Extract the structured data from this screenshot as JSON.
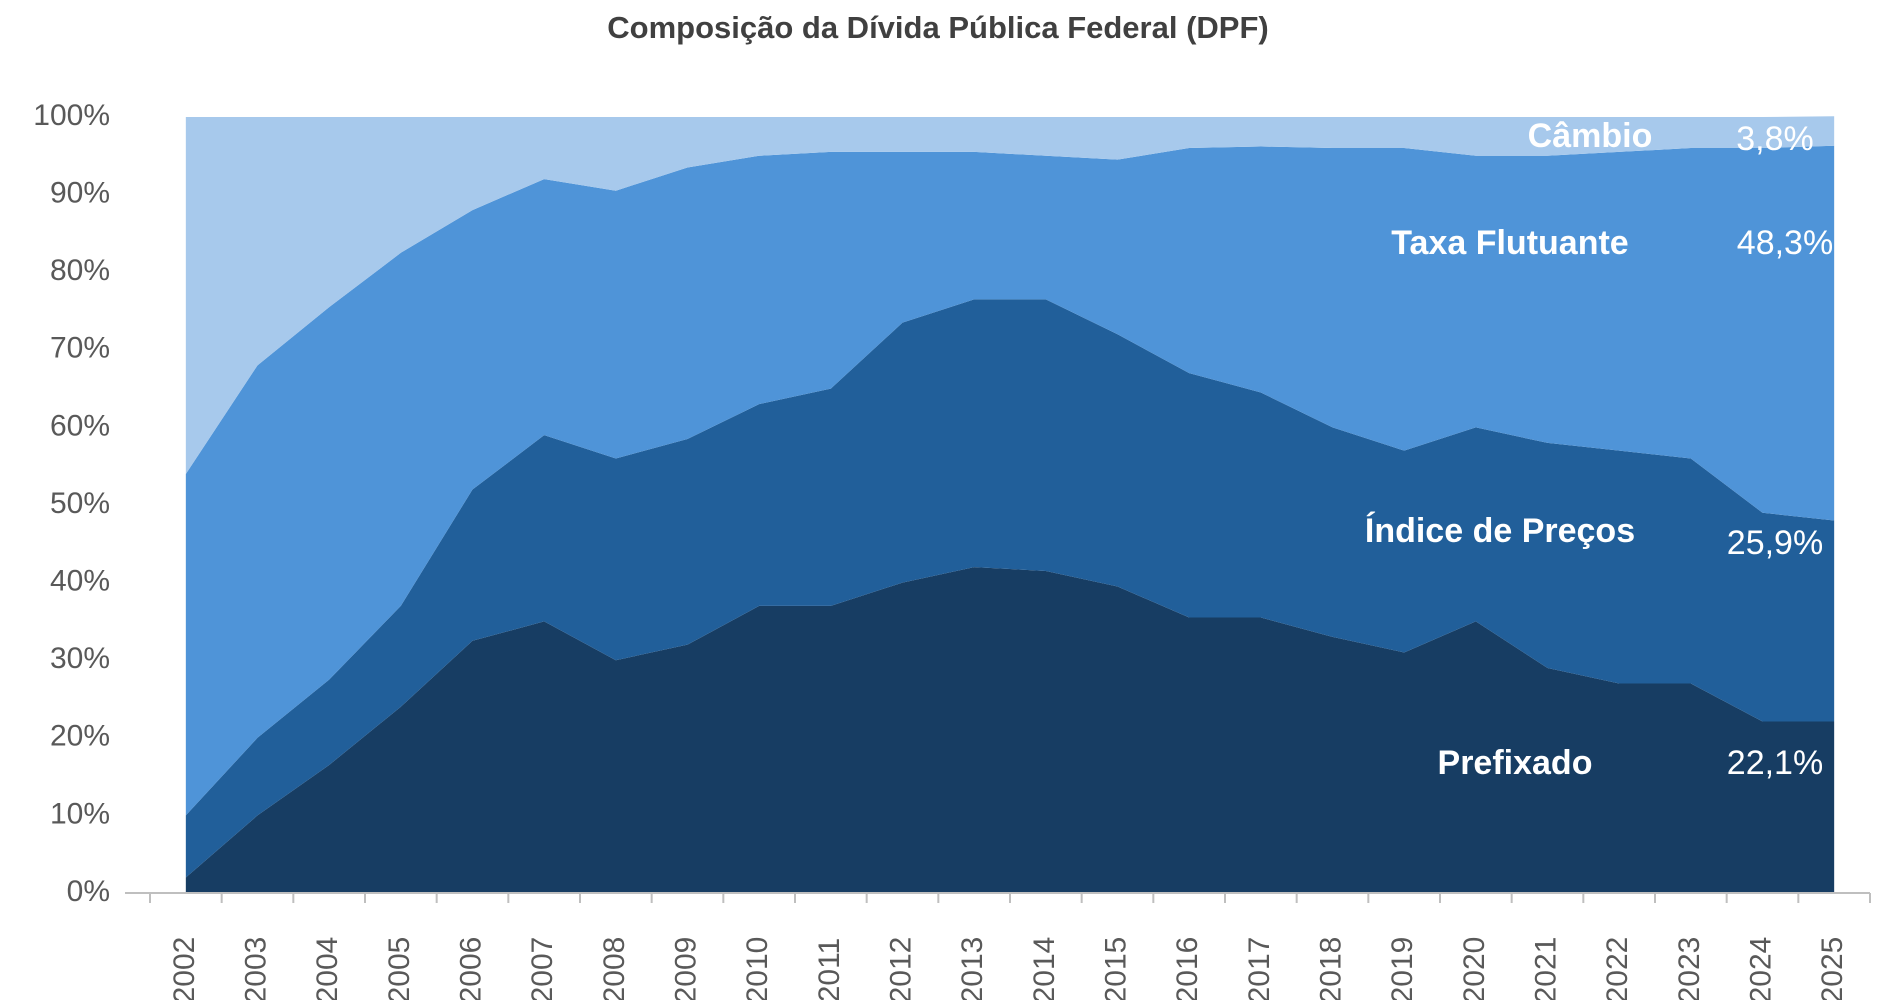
{
  "chart_data": {
    "type": "stacked_area",
    "title": "Composição da Dívida Pública Federal (DPF)",
    "categories": [
      "2002",
      "2003",
      "2004",
      "2005",
      "2006",
      "2007",
      "2008",
      "2009",
      "2010",
      "2011",
      "2012",
      "2013",
      "2014",
      "2015",
      "2016",
      "2017",
      "2018",
      "2019",
      "2020",
      "2021",
      "2022",
      "2023",
      "2024",
      "2025"
    ],
    "series": [
      {
        "name": "Prefixado",
        "color": "#173d63",
        "values": [
          2,
          10,
          16.5,
          24,
          32.5,
          35,
          30,
          32,
          37,
          37,
          40,
          42,
          41.5,
          39.5,
          35.5,
          35.5,
          33,
          31,
          35,
          29,
          27,
          27,
          22.1,
          22.1
        ],
        "value_labels": [
          null,
          null,
          null,
          null,
          null,
          null,
          null,
          null,
          null,
          null,
          null,
          null,
          null,
          null,
          null,
          null,
          null,
          null,
          null,
          null,
          null,
          null,
          null,
          "22,1%"
        ]
      },
      {
        "name": "Índice de Preços",
        "color": "#215f9a",
        "values": [
          8,
          10,
          11,
          13,
          19.5,
          24,
          26,
          26.5,
          26,
          28,
          33.5,
          34.5,
          35,
          32.5,
          31.5,
          29,
          27,
          26,
          25,
          29,
          30,
          29,
          26.9,
          25.9
        ],
        "value_labels": [
          null,
          null,
          null,
          null,
          null,
          null,
          null,
          null,
          null,
          null,
          null,
          null,
          null,
          null,
          null,
          null,
          null,
          null,
          null,
          null,
          null,
          null,
          null,
          "25,9%"
        ]
      },
      {
        "name": "Taxa Flutuante",
        "color": "#4f94d8",
        "values": [
          44,
          48,
          48,
          45.5,
          36,
          33,
          34.5,
          35,
          32,
          30.5,
          22,
          19,
          18.5,
          22.5,
          29,
          31.7,
          36,
          39,
          35,
          37,
          38.5,
          40,
          47,
          48.3
        ],
        "value_labels": [
          null,
          null,
          null,
          null,
          null,
          null,
          null,
          null,
          null,
          null,
          null,
          null,
          null,
          null,
          null,
          null,
          null,
          null,
          null,
          null,
          null,
          null,
          null,
          "48,3%"
        ]
      },
      {
        "name": "Câmbio",
        "color": "#a7c9ec",
        "values": [
          46,
          32,
          24.5,
          17.5,
          12,
          8,
          9.5,
          6.5,
          5,
          4.5,
          4.5,
          4.5,
          5,
          5.5,
          4,
          3.8,
          4,
          4,
          5,
          5,
          4.5,
          4,
          4,
          3.8
        ],
        "value_labels": [
          null,
          null,
          null,
          null,
          null,
          null,
          null,
          null,
          null,
          null,
          null,
          null,
          null,
          null,
          null,
          null,
          null,
          null,
          null,
          null,
          null,
          null,
          null,
          "3,8%"
        ]
      }
    ],
    "ylim": [
      0,
      100
    ],
    "yticks": [
      {
        "value": 0,
        "label": "0%"
      },
      {
        "value": 10,
        "label": "10%"
      },
      {
        "value": 20,
        "label": "20%"
      },
      {
        "value": 30,
        "label": "30%"
      },
      {
        "value": 40,
        "label": "40%"
      },
      {
        "value": 50,
        "label": "50%"
      },
      {
        "value": 60,
        "label": "60%"
      },
      {
        "value": 70,
        "label": "70%"
      },
      {
        "value": 80,
        "label": "80%"
      },
      {
        "value": 90,
        "label": "90%"
      },
      {
        "value": 100,
        "label": "100%"
      }
    ]
  }
}
